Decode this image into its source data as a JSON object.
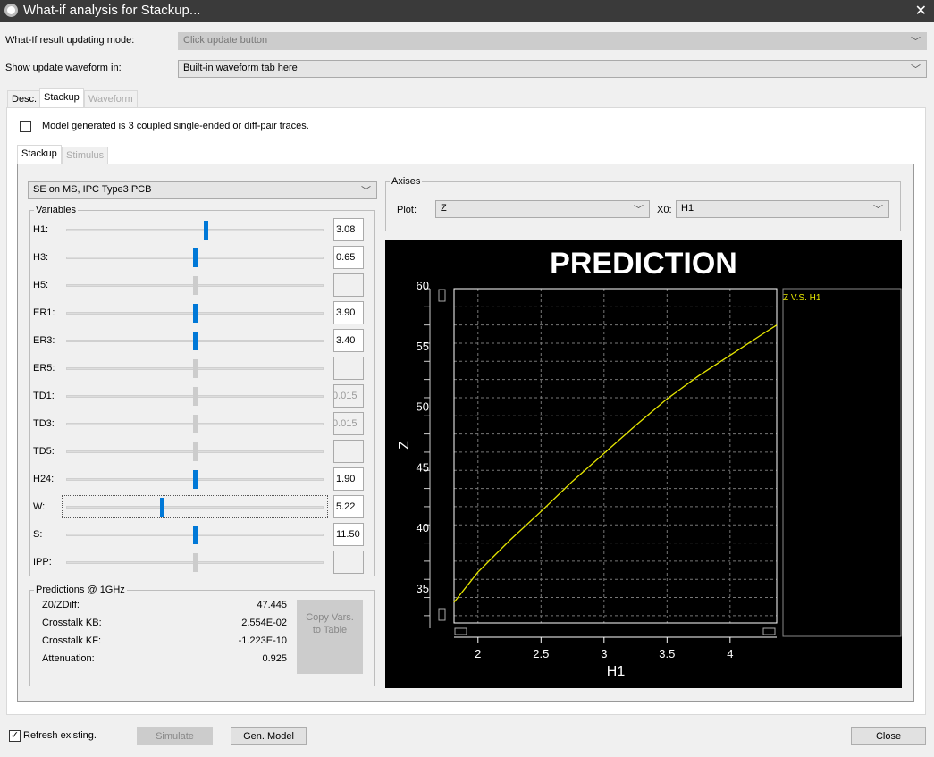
{
  "window": {
    "title": "What-if analysis for Stackup...",
    "close_icon": "close-icon"
  },
  "settings": {
    "mode_label": "What-If result updating mode:",
    "mode_value": "Click update button",
    "show_label": "Show update waveform in:",
    "show_value": "Built-in waveform tab here"
  },
  "tabs": [
    {
      "label": "Desc."
    },
    {
      "label": "Stackup"
    },
    {
      "label": "Waveform"
    }
  ],
  "model_checkbox": {
    "label": "Model generated is 3 coupled single-ended or diff-pair traces.",
    "checked": false
  },
  "subtabs": [
    {
      "label": "Stackup"
    },
    {
      "label": "Stimulus"
    }
  ],
  "stackup_type": "SE on MS, IPC Type3 PCB",
  "variables": {
    "title": "Variables",
    "items": [
      {
        "label": "H1:",
        "value": "3.08",
        "slider": 0.54,
        "enabled": true
      },
      {
        "label": "H3:",
        "value": "0.65",
        "slider": 0.5,
        "enabled": true
      },
      {
        "label": "H5:",
        "value": "",
        "slider": 0.5,
        "enabled": false
      },
      {
        "label": "ER1:",
        "value": "3.90",
        "slider": 0.5,
        "enabled": true
      },
      {
        "label": "ER3:",
        "value": "3.40",
        "slider": 0.5,
        "enabled": true
      },
      {
        "label": "ER5:",
        "value": "",
        "slider": 0.5,
        "enabled": false
      },
      {
        "label": "TD1:",
        "value": "0.015",
        "slider": 0.5,
        "enabled": false
      },
      {
        "label": "TD3:",
        "value": "0.015",
        "slider": 0.5,
        "enabled": false
      },
      {
        "label": "TD5:",
        "value": "",
        "slider": 0.5,
        "enabled": false
      },
      {
        "label": "H24:",
        "value": "1.90",
        "slider": 0.5,
        "enabled": true
      },
      {
        "label": "W:",
        "value": "5.22",
        "slider": 0.37,
        "enabled": true
      },
      {
        "label": "S:",
        "value": "11.50",
        "slider": 0.5,
        "enabled": true
      },
      {
        "label": "IPP:",
        "value": "",
        "slider": 0.5,
        "enabled": false
      }
    ]
  },
  "predictions": {
    "title": "Predictions @ 1GHz",
    "rows": [
      {
        "label": "Z0/ZDiff:",
        "value": "47.445"
      },
      {
        "label": "Crosstalk KB:",
        "value": "2.554E-02"
      },
      {
        "label": "Crosstalk KF:",
        "value": "-1.223E-10"
      },
      {
        "label": "Attenuation:",
        "value": "0.925"
      }
    ],
    "copy_button": "Copy Vars. to Table"
  },
  "axises": {
    "title": "Axises",
    "plot_label": "Plot:",
    "plot_value": "Z",
    "x0_label": "X0:",
    "x0_value": "H1"
  },
  "footer": {
    "refresh_label": "Refresh existing.",
    "refresh_checked": true,
    "simulate": "Simulate",
    "gen_model": "Gen. Model",
    "close": "Close"
  },
  "chart_data": {
    "type": "line",
    "title": "PREDICTION",
    "xlabel": "H1",
    "ylabel": "Z",
    "xlim": [
      1.81,
      4.37
    ],
    "ylim": [
      32.4,
      60
    ],
    "xticks": [
      "2",
      "2.5",
      "3",
      "3.5",
      "4"
    ],
    "yticks": [
      "35",
      "40",
      "45",
      "50",
      "55",
      "60"
    ],
    "grid": true,
    "legend_placement": "right",
    "series": [
      {
        "name": "Z V.S. H1",
        "color": "#e6e600",
        "x": [
          1.81,
          2.0,
          2.25,
          2.5,
          2.75,
          3.0,
          3.25,
          3.5,
          3.75,
          4.0,
          4.25,
          4.37
        ],
        "y": [
          34.1,
          36.6,
          39.2,
          41.6,
          44.1,
          46.4,
          48.7,
          50.9,
          52.8,
          54.5,
          56.2,
          57.0
        ]
      }
    ],
    "background": "#000000"
  }
}
